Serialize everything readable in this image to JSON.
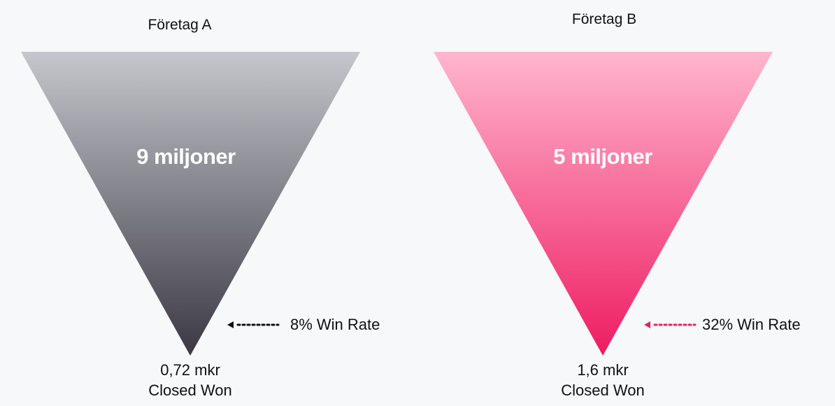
{
  "funnels": [
    {
      "company": "Företag A",
      "pipeline": "9 miljoner",
      "win_rate": "8% Win Rate",
      "closed_value": "0,72 mkr",
      "closed_label": "Closed Won",
      "colors": {
        "top": "#c4c7cc",
        "bottom": "#3b3843",
        "arrow": "#111111"
      }
    },
    {
      "company": "Företag B",
      "pipeline": "5 miljoner",
      "win_rate": "32% Win Rate",
      "closed_value": "1,6 mkr",
      "closed_label": "Closed Won",
      "colors": {
        "top": "#ffb6ce",
        "bottom": "#ee1c62",
        "arrow": "#e8215f"
      }
    }
  ]
}
